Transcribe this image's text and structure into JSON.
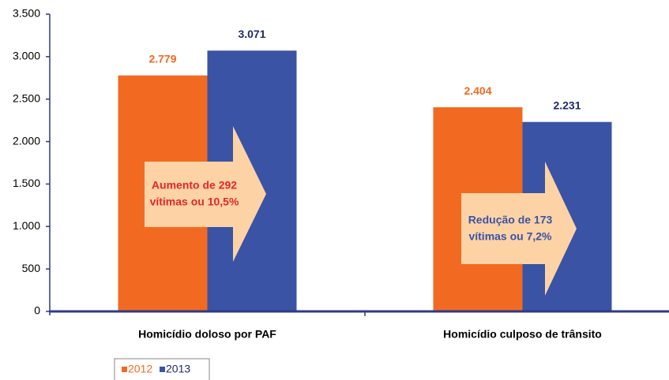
{
  "chart_data": {
    "type": "bar",
    "categories": [
      "Homicídio doloso por PAF",
      "Homicídio culposo de trânsito"
    ],
    "series": [
      {
        "name": "2012",
        "color": "#f26a21",
        "values": [
          2779,
          2404
        ],
        "value_labels": [
          "2.779",
          "2.404"
        ]
      },
      {
        "name": "2013",
        "color": "#3a53a4",
        "values": [
          3071,
          2231
        ],
        "value_labels": [
          "3.071",
          "2.231"
        ]
      }
    ],
    "ylim": [
      0,
      3500
    ],
    "yticks": [
      {
        "value": 0,
        "label": "0"
      },
      {
        "value": 500,
        "label": "500"
      },
      {
        "value": 1000,
        "label": "1.000"
      },
      {
        "value": 1500,
        "label": "1.500"
      },
      {
        "value": 2000,
        "label": "2.000"
      },
      {
        "value": 2500,
        "label": "2.500"
      },
      {
        "value": 3000,
        "label": "3.000"
      },
      {
        "value": 3500,
        "label": "3.500"
      }
    ],
    "annotations": [
      {
        "lines": [
          "Aumento de 292",
          "vítimas ou 10,5%"
        ],
        "color": "#e3262b"
      },
      {
        "lines": [
          "Redução de 173",
          "vítimas ou 7,2%"
        ],
        "color": "#3a53a4"
      }
    ],
    "legend": "bottom-left"
  }
}
